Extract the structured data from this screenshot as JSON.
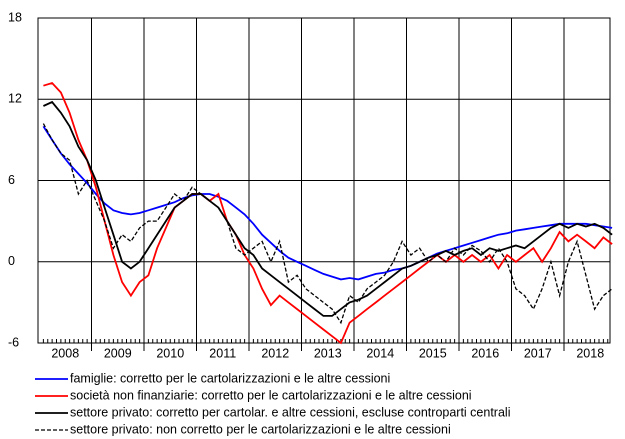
{
  "chart_data": {
    "type": "line",
    "categories": [
      "2008",
      "2009",
      "2010",
      "2011",
      "2012",
      "2013",
      "2014",
      "2015",
      "2016",
      "2017",
      "2018"
    ],
    "ylim": [
      -6,
      18
    ],
    "yticks": [
      -6,
      0,
      6,
      12,
      18
    ],
    "grid": true,
    "series": [
      {
        "name": "famiglie: corretto per le cartolarizzazioni e le altre cessioni",
        "color": "#0000ff",
        "line_style": "solid",
        "values": [
          [
            10,
            9,
            8,
            7.2,
            6.5,
            5.8
          ],
          [
            5.0,
            4.3,
            3.8,
            3.6,
            3.5,
            3.6
          ],
          [
            3.8,
            4.0,
            4.2,
            4.4,
            4.7,
            4.9
          ],
          [
            5.0,
            5.0,
            4.8,
            4.5,
            4.0,
            3.5
          ],
          [
            2.8,
            2.0,
            1.4,
            0.8,
            0.3,
            0
          ],
          [
            -0.3,
            -0.6,
            -0.9,
            -1.1,
            -1.3,
            -1.2
          ],
          [
            -1.3,
            -1.1,
            -0.9,
            -0.8,
            -0.6,
            -0.5
          ],
          [
            -0.3,
            0,
            0.3,
            0.6,
            0.8,
            1.0
          ],
          [
            1.2,
            1.4,
            1.6,
            1.8,
            2.0,
            2.1
          ],
          [
            2.3,
            2.4,
            2.5,
            2.6,
            2.7,
            2.8
          ],
          [
            2.8,
            2.8,
            2.8,
            2.7,
            2.6,
            2.5
          ]
        ]
      },
      {
        "name": "società non finanziarie: corretto per le cartolarizzazioni e le altre cessioni",
        "color": "#ff0000",
        "line_style": "solid",
        "values": [
          [
            13,
            13.2,
            12.5,
            11,
            9,
            7.5
          ],
          [
            5.5,
            3.0,
            0.5,
            -1.5,
            -2.5,
            -1.5
          ],
          [
            -1,
            1,
            2.5,
            4,
            4.5,
            5
          ],
          [
            5,
            4.5,
            5,
            3,
            2,
            0.5
          ],
          [
            -0.5,
            -2,
            -3.2,
            -2.5,
            -3,
            -3.5
          ],
          [
            -4,
            -4.5,
            -5,
            -5.5,
            -6,
            -4.5
          ],
          [
            -4,
            -3.5,
            -3,
            -2.5,
            -2,
            -1.5
          ],
          [
            -1,
            -0.5,
            0,
            0.5,
            0,
            0.5
          ],
          [
            0,
            0.5,
            0,
            0.5,
            -0.5,
            0.5
          ],
          [
            0,
            0.5,
            1,
            0,
            1,
            2.2
          ],
          [
            1.5,
            2,
            1.5,
            1,
            1.8,
            1.3
          ]
        ]
      },
      {
        "name": "settore privato: corretto per cartolar. e altre cessioni, escluse controparti centrali",
        "color": "#000000",
        "line_style": "solid",
        "values": [
          [
            11.5,
            11.8,
            11,
            10,
            8.5,
            7.5
          ],
          [
            6,
            4,
            2,
            0,
            -0.5,
            0
          ],
          [
            1,
            2,
            3,
            4,
            4.5,
            5
          ],
          [
            5,
            4.5,
            4,
            3,
            2,
            1
          ],
          [
            0.5,
            -0.5,
            -1,
            -1.5,
            -2,
            -2.5
          ],
          [
            -3,
            -3.5,
            -4,
            -4,
            -3.5,
            -3
          ],
          [
            -2.8,
            -2.5,
            -2,
            -1.5,
            -1,
            -0.5
          ],
          [
            -0.3,
            0,
            0.3,
            0.5,
            0.8,
            0.5
          ],
          [
            0.8,
            1,
            0.5,
            1,
            0.8,
            1
          ],
          [
            1.2,
            1,
            1.5,
            2,
            2.5,
            2.8
          ],
          [
            2.5,
            2.8,
            2.6,
            2.8,
            2.5,
            2.0
          ]
        ]
      },
      {
        "name": "settore privato: non corretto per le cartolarizzazioni e le altre cessioni",
        "color": "#000000",
        "line_style": "dashed",
        "values": [
          [
            10.2,
            9,
            8,
            7.5,
            5,
            6
          ],
          [
            4.5,
            3,
            1,
            2,
            1.5,
            2.5
          ],
          [
            3,
            3,
            4,
            5,
            4.5,
            5.5
          ],
          [
            5,
            4.5,
            4,
            3,
            1,
            0.5
          ],
          [
            1,
            1.5,
            0,
            1.5,
            -1.5,
            -1
          ],
          [
            -2,
            -2.5,
            -3,
            -3.5,
            -4.5,
            -2.5
          ],
          [
            -3,
            -2,
            -1.5,
            -1,
            0,
            1.5
          ],
          [
            0.5,
            1,
            0,
            0.5,
            0,
            1
          ],
          [
            0.5,
            1.2,
            0.8,
            0,
            1,
            0
          ],
          [
            -2,
            -2.5,
            -3.5,
            -2,
            0,
            -2.5
          ],
          [
            0,
            1.5,
            -1,
            -3.5,
            -2.5,
            -2
          ]
        ]
      }
    ]
  }
}
